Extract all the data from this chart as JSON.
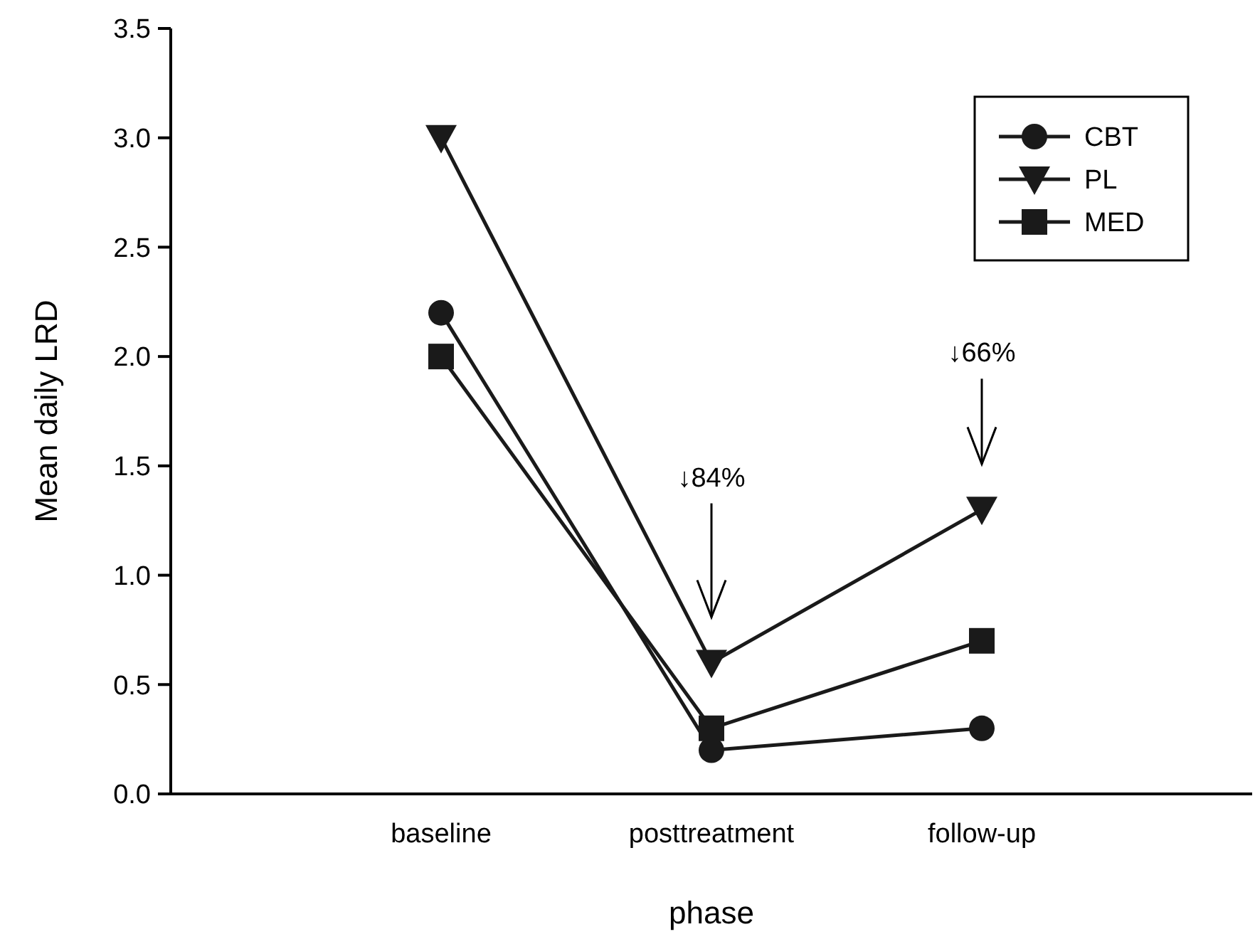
{
  "chart_data": {
    "type": "line",
    "xlabel": "phase",
    "ylabel": "Mean daily LRD",
    "categories": [
      "baseline",
      "posttreatment",
      "follow-up"
    ],
    "series": [
      {
        "name": "CBT",
        "color": "#1a1a1a",
        "marker": "circle",
        "values": [
          2.2,
          0.2,
          0.3
        ]
      },
      {
        "name": "PL",
        "color": "#1a1a1a",
        "marker": "triangle",
        "values": [
          3.0,
          0.6,
          1.3
        ]
      },
      {
        "name": "MED",
        "color": "#1a1a1a",
        "marker": "square",
        "values": [
          2.0,
          0.3,
          0.7
        ]
      }
    ],
    "ylim": [
      0,
      3.5
    ],
    "yticks": [
      {
        "value": 0,
        "label": "0.0"
      },
      {
        "value": 0.5,
        "label": "0.5"
      },
      {
        "value": 1,
        "label": "1.0"
      },
      {
        "value": 1.5,
        "label": "1.5"
      },
      {
        "value": 2,
        "label": "2.0"
      },
      {
        "value": 2.5,
        "label": "2.5"
      },
      {
        "value": 3,
        "label": "3.0"
      },
      {
        "value": 3.5,
        "label": "3.5"
      }
    ],
    "annotations": [
      "↓84%",
      "↓66%"
    ],
    "legend": "top right",
    "grid": false,
    "line_style": "solid"
  }
}
